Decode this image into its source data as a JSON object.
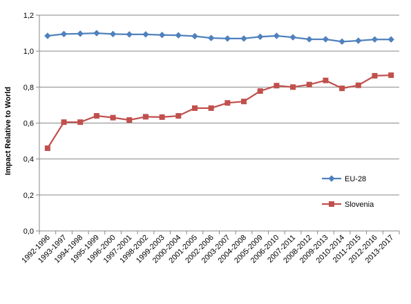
{
  "chart_data": {
    "type": "line",
    "title": "",
    "xlabel": "",
    "ylabel": "Impact Relative to World",
    "ylim": [
      0,
      1.2
    ],
    "ytick_step": 0.2,
    "ytick_labels": [
      "0,0",
      "0,2",
      "0,4",
      "0,6",
      "0,8",
      "1,0",
      "1,2"
    ],
    "grid": "horizontal",
    "legend_position": "right",
    "categories": [
      "1992-1996",
      "1993-1997",
      "1994-1998",
      "1995-1999",
      "1996-2000",
      "1997-2001",
      "1998-2002",
      "1999-2003",
      "2000-2004",
      "2001-2005",
      "2002-2006",
      "2003-2007",
      "2004-2008",
      "2005-2009",
      "2006-2010",
      "2007-2011",
      "2008-2012",
      "2009-2013",
      "2010-2014",
      "2011-2015",
      "2012-2016",
      "2013-2017"
    ],
    "series": [
      {
        "name": "EU-28",
        "color": "#4f81bd",
        "marker": "diamond",
        "values": [
          1.085,
          1.095,
          1.097,
          1.1,
          1.095,
          1.093,
          1.093,
          1.09,
          1.088,
          1.083,
          1.073,
          1.07,
          1.07,
          1.08,
          1.085,
          1.077,
          1.066,
          1.066,
          1.053,
          1.058,
          1.065,
          1.065
        ]
      },
      {
        "name": "Slovenia",
        "color": "#c0504d",
        "marker": "square",
        "values": [
          0.46,
          0.605,
          0.605,
          0.64,
          0.63,
          0.617,
          0.635,
          0.633,
          0.64,
          0.683,
          0.683,
          0.712,
          0.72,
          0.778,
          0.808,
          0.8,
          0.814,
          0.837,
          0.793,
          0.81,
          0.863,
          0.866
        ]
      }
    ]
  }
}
